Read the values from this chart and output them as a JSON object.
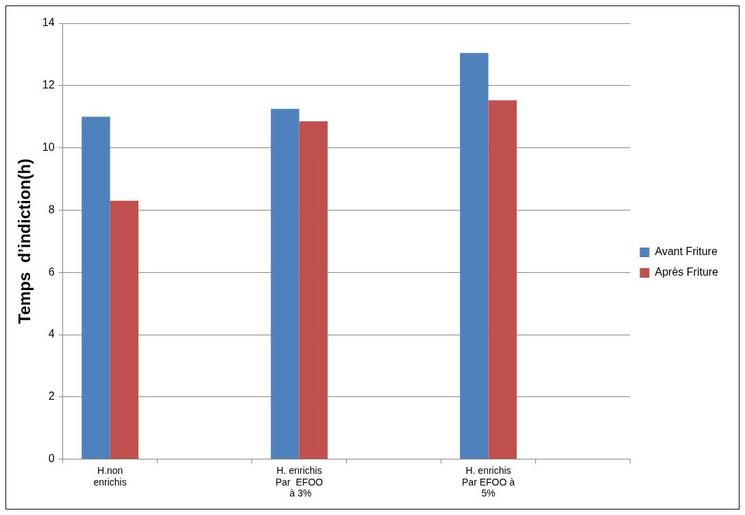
{
  "chart_data": {
    "type": "bar",
    "ylabel": "Temps  d’indiction(h)",
    "categories": [
      "H.non\nenrichis",
      null,
      "H. enrichis\nPar  EFOO\n à 3%",
      null,
      "H. enrichis\nPar EFOO à\n5%",
      null
    ],
    "series": [
      {
        "name": "Avant Friture",
        "color": "#4f81bd",
        "values": [
          11,
          null,
          11.25,
          null,
          13.05,
          null
        ]
      },
      {
        "name": "Après Friture",
        "color": "#c0504d",
        "values": [
          8.3,
          null,
          10.85,
          null,
          11.53,
          null
        ]
      }
    ],
    "ylim": [
      0,
      14
    ],
    "yticks": [
      0,
      2,
      4,
      6,
      8,
      10,
      12,
      14
    ],
    "grid": "y",
    "legend": "right"
  }
}
